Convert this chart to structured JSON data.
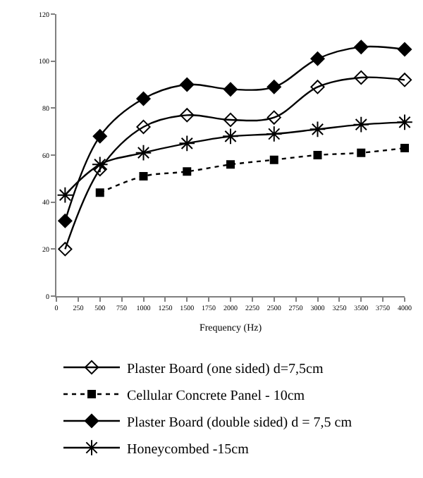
{
  "chart_data": {
    "type": "line",
    "xlabel": "Frequency (Hz)",
    "x": [
      100,
      500,
      1000,
      1500,
      2000,
      2500,
      3000,
      3500,
      4000
    ],
    "series": [
      {
        "name": "Plaster Board (one sided) d=7,5cm",
        "color": "#000000",
        "marker": "diamond",
        "line_style": "solid",
        "values": [
          20,
          54,
          72,
          77,
          75,
          76,
          89,
          93,
          92
        ]
      },
      {
        "name": "Cellular Concrete Panel - 10cm",
        "color": "#000000",
        "marker": "square",
        "line_style": "dotted",
        "x": [
          500,
          1000,
          1500,
          2000,
          2500,
          3000,
          3500,
          4000
        ],
        "values": [
          44,
          51,
          53,
          56,
          58,
          60,
          61,
          63
        ]
      },
      {
        "name": "Plaster Board (double sided) d = 7,5 cm",
        "color": "#000000",
        "marker": "diamond",
        "line_style": "solid",
        "values": [
          32,
          68,
          84,
          90,
          88,
          89,
          101,
          106,
          105
        ]
      },
      {
        "name": "Honeycombed -15cm",
        "color": "#000000",
        "marker": "cross",
        "line_style": "solid",
        "values": [
          43,
          56,
          61,
          65,
          68,
          69,
          71,
          73,
          74
        ]
      }
    ],
    "xlim": [
      0,
      4000
    ],
    "xticks": [
      0,
      250,
      500,
      750,
      1000,
      1250,
      1500,
      1750,
      2000,
      2250,
      2500,
      2750,
      3000,
      3250,
      3500,
      3750,
      4000
    ],
    "ylim": [
      0,
      120
    ],
    "yticks": [
      0,
      20,
      40,
      60,
      80,
      100,
      120
    ],
    "legend": "bottom"
  }
}
